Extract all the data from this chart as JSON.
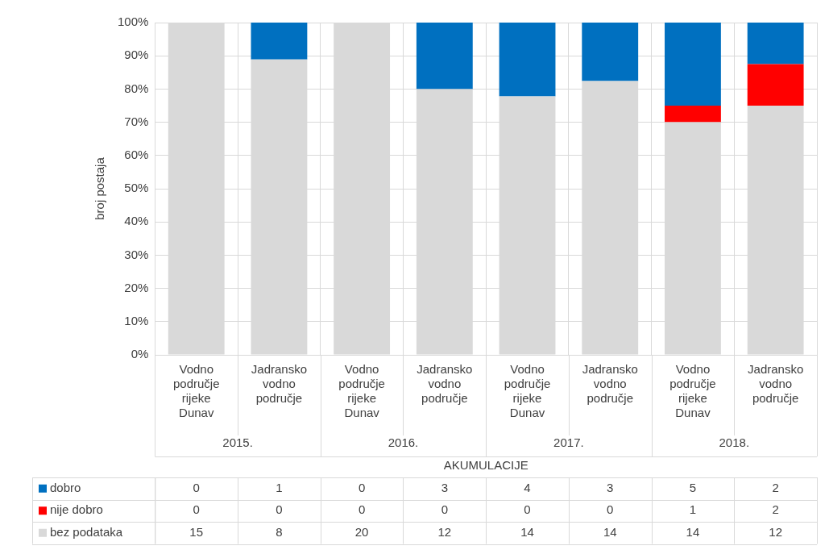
{
  "chart_data": {
    "type": "bar",
    "stacked": true,
    "categories": [
      "Vodno područje rijeke Dunav",
      "Jadransko vodno područje",
      "Vodno područje rijeke Dunav",
      "Jadransko vodno područje",
      "Vodno područje rijeke Dunav",
      "Jadransko vodno područje",
      "Vodno područje rijeke Dunav",
      "Jadransko vodno područje"
    ],
    "xlabel": "AKUMULACIJE",
    "ylabel": "broj postaja",
    "annotations": [
      "2015.",
      "2016.",
      "2017.",
      "2018.",
      "0",
      "1",
      "0",
      "3",
      "4",
      "3",
      "5",
      "2",
      "0",
      "0",
      "0",
      "0",
      "0",
      "0",
      "1",
      "2",
      "15",
      "8",
      "20",
      "12",
      "14",
      "14",
      "14",
      "12"
    ],
    "series": [
      {
        "name": "bez podataka",
        "color": "#d9d9d9",
        "values": [
          100,
          88.9,
          100,
          80,
          77.8,
          82.4,
          70,
          75
        ]
      },
      {
        "name": "nije dobro",
        "color": "#ff0000",
        "values": [
          0,
          0,
          0,
          0,
          0,
          0,
          5,
          12.5
        ]
      },
      {
        "name": "dobro",
        "color": "#0070c0",
        "values": [
          0,
          11.1,
          0,
          20,
          22.2,
          17.6,
          25,
          12.5
        ]
      }
    ],
    "ylim": [
      0,
      100
    ],
    "yticks": [
      {
        "value": 0,
        "label": "0%"
      },
      {
        "value": 10,
        "label": "10%"
      },
      {
        "value": 20,
        "label": "20%"
      },
      {
        "value": 30,
        "label": "30%"
      },
      {
        "value": 40,
        "label": "40%"
      },
      {
        "value": 50,
        "label": "50%"
      },
      {
        "value": 60,
        "label": "60%"
      },
      {
        "value": 70,
        "label": "70%"
      },
      {
        "value": 80,
        "label": "80%"
      },
      {
        "value": 90,
        "label": "90%"
      },
      {
        "value": 100,
        "label": "100%"
      }
    ],
    "grid": true,
    "legend": "bottom"
  }
}
